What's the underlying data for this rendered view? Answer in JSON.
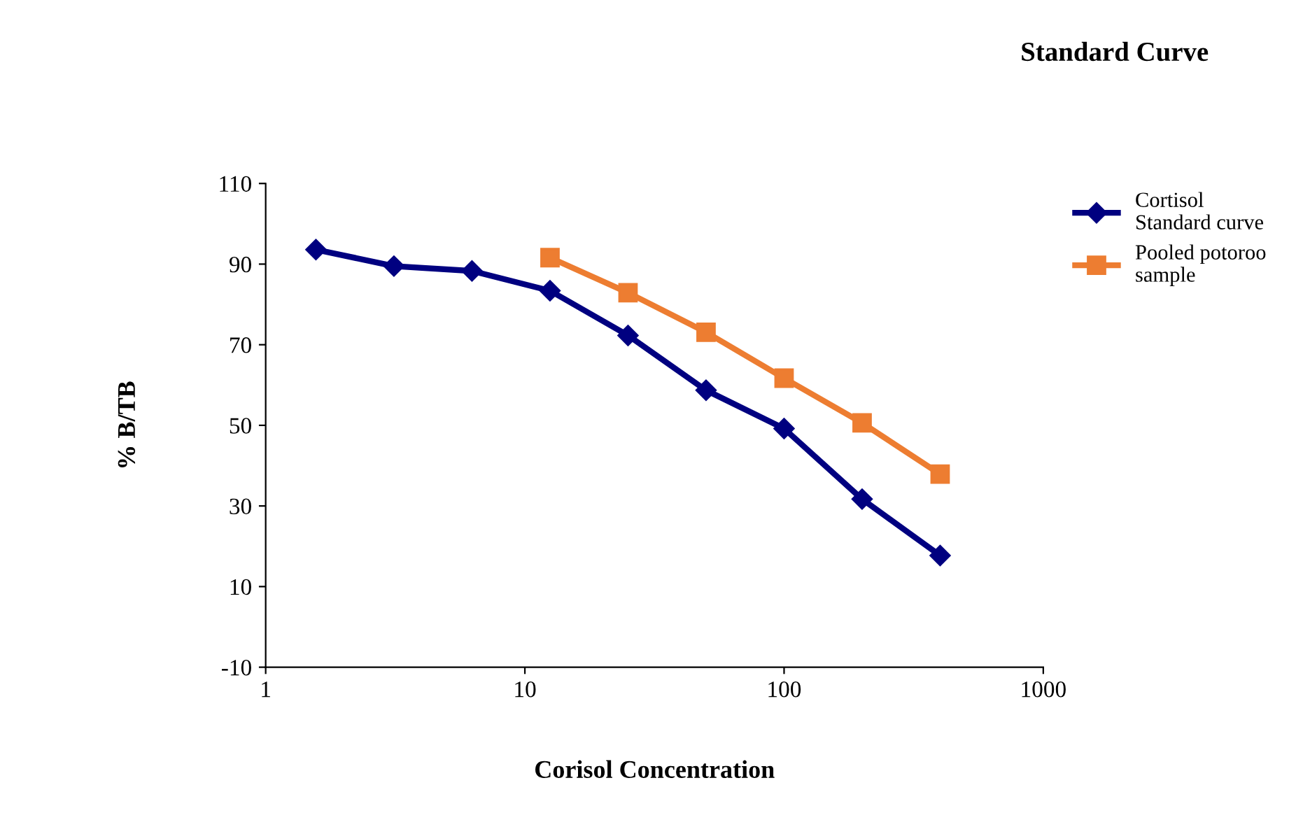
{
  "chart_data": {
    "type": "line",
    "title": "Standard Curve",
    "xlabel": "Corisol Concentration",
    "ylabel": "% B/TB",
    "log": "x",
    "xlim": [
      1,
      1000
    ],
    "xticks": [
      1,
      10,
      100,
      1000
    ],
    "ylim": [
      -10,
      110
    ],
    "yticks": [
      -10,
      10,
      30,
      50,
      70,
      90,
      110
    ],
    "grid": false,
    "legend": "right",
    "series": [
      {
        "name": "Cortisol\nStandard curve",
        "color": "#000080",
        "marker": "diamond",
        "x": [
          1.5625,
          3.125,
          6.25,
          12.5,
          25,
          50,
          100,
          200,
          400
        ],
        "values": [
          93.6,
          89.5,
          88.3,
          83.4,
          72.3,
          58.7,
          49.2,
          31.7,
          17.7
        ]
      },
      {
        "name": "Pooled potoroo\nsample",
        "color": "#ed7d31",
        "marker": "square",
        "x": [
          12.5,
          25,
          50,
          100,
          200,
          400
        ],
        "values": [
          91.6,
          82.9,
          73.1,
          61.7,
          50.6,
          37.9
        ]
      }
    ]
  }
}
